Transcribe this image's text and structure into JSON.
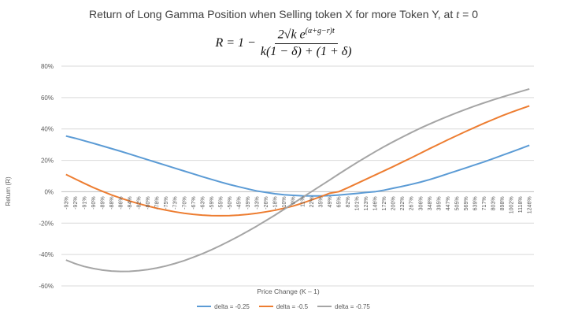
{
  "chart_data": {
    "type": "line",
    "title_prefix": "Return of Long Gamma Position when Selling token X for more Token Y, at",
    "title_var": "t",
    "title_suffix": " = 0",
    "formula_lhs": "R = 1 −",
    "formula_numerator": "2√k e",
    "formula_exponent": "(α+g−r)t",
    "formula_denominator": "k(1 − δ) + (1 + δ)",
    "xlabel": "Price Change (K – 1)",
    "ylabel": "Return (R)",
    "ylim": [
      -0.6,
      0.8
    ],
    "yticks": [
      "-60%",
      "-40%",
      "-20%",
      "0%",
      "20%",
      "40%",
      "60%",
      "80%"
    ],
    "categories": [
      "-93%",
      "-92%",
      "-91%",
      "-90%",
      "-89%",
      "-88%",
      "-86%",
      "-84%",
      "-82%",
      "-80%",
      "-78%",
      "-75%",
      "-73%",
      "-70%",
      "-67%",
      "-63%",
      "-59%",
      "-55%",
      "-50%",
      "-45%",
      "-39%",
      "-33%",
      "-26%",
      "-18%",
      "-10%",
      "0%",
      "11%",
      "22%",
      "35%",
      "49%",
      "65%",
      "82%",
      "101%",
      "123%",
      "146%",
      "172%",
      "200%",
      "232%",
      "267%",
      "306%",
      "348%",
      "395%",
      "447%",
      "505%",
      "569%",
      "639%",
      "717%",
      "803%",
      "898%",
      "1002%",
      "1118%",
      "1246%"
    ],
    "legend_position": "bottom",
    "grid": true,
    "series": [
      {
        "name": "delta = -0.25",
        "color": "#5B9BD5",
        "values": [
          0.355,
          0.341,
          0.325,
          0.309,
          0.292,
          0.275,
          0.258,
          0.24,
          0.222,
          0.204,
          0.186,
          0.168,
          0.15,
          0.132,
          0.114,
          0.096,
          0.079,
          0.062,
          0.046,
          0.032,
          0.018,
          0.005,
          -0.004,
          -0.013,
          -0.019,
          -0.023,
          -0.026,
          -0.027,
          -0.027,
          -0.025,
          -0.021,
          -0.016,
          -0.011,
          -0.005,
          0.0,
          0.01,
          0.022,
          0.034,
          0.047,
          0.061,
          0.077,
          0.095,
          0.114,
          0.133,
          0.152,
          0.171,
          0.19,
          0.211,
          0.232,
          0.253,
          0.274,
          0.296
        ]
      },
      {
        "name": "delta = -0.5",
        "color": "#ED7D31",
        "values": [
          0.11,
          0.082,
          0.054,
          0.027,
          0.003,
          -0.02,
          -0.04,
          -0.059,
          -0.076,
          -0.091,
          -0.105,
          -0.117,
          -0.128,
          -0.137,
          -0.144,
          -0.149,
          -0.152,
          -0.153,
          -0.152,
          -0.149,
          -0.144,
          -0.137,
          -0.128,
          -0.118,
          -0.105,
          -0.091,
          -0.073,
          -0.053,
          -0.032,
          -0.01,
          0.0,
          0.025,
          0.052,
          0.079,
          0.106,
          0.133,
          0.16,
          0.188,
          0.216,
          0.245,
          0.274,
          0.302,
          0.33,
          0.357,
          0.384,
          0.41,
          0.436,
          0.46,
          0.484,
          0.506,
          0.527,
          0.547
        ]
      },
      {
        "name": "delta = -0.75",
        "color": "#A5A5A5",
        "values": [
          -0.435,
          -0.458,
          -0.476,
          -0.489,
          -0.499,
          -0.505,
          -0.508,
          -0.507,
          -0.503,
          -0.496,
          -0.486,
          -0.473,
          -0.457,
          -0.439,
          -0.418,
          -0.395,
          -0.37,
          -0.343,
          -0.314,
          -0.284,
          -0.252,
          -0.219,
          -0.184,
          -0.149,
          -0.112,
          -0.075,
          -0.037,
          0.0,
          0.037,
          0.074,
          0.112,
          0.149,
          0.185,
          0.22,
          0.254,
          0.287,
          0.318,
          0.348,
          0.377,
          0.405,
          0.431,
          0.456,
          0.48,
          0.503,
          0.525,
          0.546,
          0.566,
          0.585,
          0.603,
          0.621,
          0.638,
          0.655
        ]
      }
    ]
  }
}
